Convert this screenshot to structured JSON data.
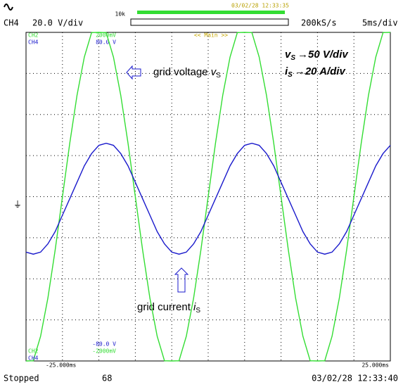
{
  "header": {
    "timestamp": "03/02/28 12:33:35",
    "record_length": "10k",
    "channel": "CH4",
    "scale": "20.0 V/div",
    "sample_rate": "200kS/s",
    "timebase": "5ms/div",
    "window": "<< Main >>"
  },
  "footer": {
    "status": "Stopped",
    "count": "68",
    "timestamp": "03/02/28 12:33:40"
  },
  "annotations": {
    "voltage": {
      "text": "grid voltage ",
      "var": "v",
      "sub": "S"
    },
    "current": {
      "text": "grid current ",
      "var": "i",
      "sub": "S"
    },
    "vscale": {
      "var": "v",
      "sub": "S",
      "text": "→50 V/div"
    },
    "iscale": {
      "var": "i",
      "sub": "S",
      "text": "→20 A/div"
    }
  },
  "chart_data": {
    "type": "line",
    "x": [
      -25,
      -24,
      -23,
      -22,
      -21,
      -20,
      -19,
      -18,
      -17,
      -16,
      -15,
      -14,
      -13,
      -12,
      -11,
      -10,
      -9,
      -8,
      -7,
      -6,
      -5,
      -4,
      -3,
      -2,
      -1,
      0,
      1,
      2,
      3,
      4,
      5,
      6,
      7,
      8,
      9,
      10,
      11,
      12,
      13,
      14,
      15,
      16,
      17,
      18,
      19,
      20,
      21,
      22,
      23,
      24,
      25
    ],
    "xlim": [
      -25,
      25
    ],
    "xticks": [
      {
        "value": -25,
        "label": "-25.000ms"
      },
      {
        "value": 25,
        "label": "25.000ms"
      }
    ],
    "ylim": [
      -2000,
      2000
    ],
    "yticks": [
      {
        "value": 2000,
        "label": "2000mV"
      },
      {
        "value": -2000,
        "label": "-2000mV"
      }
    ],
    "y2lim": [
      -80,
      80
    ],
    "y2ticks": [
      {
        "value": 80,
        "label": "80.0 V"
      },
      {
        "value": -80,
        "label": "-80.0 V"
      }
    ],
    "series": [
      {
        "name": "CH2",
        "color": "#33dd33",
        "values": [
          -2000,
          -1997,
          -1699,
          -1235,
          -649,
          0,
          649,
          1235,
          1699,
          1997,
          2000,
          1997,
          1699,
          1235,
          649,
          0,
          -649,
          -1235,
          -1699,
          -1997,
          -2000,
          -1997,
          -1699,
          -1235,
          -649,
          0,
          649,
          1235,
          1699,
          1997,
          2000,
          1997,
          1699,
          1235,
          649,
          0,
          -649,
          -1235,
          -1699,
          -1997,
          -2000,
          -1997,
          -1699,
          -1235,
          -649,
          0,
          649,
          1235,
          1699,
          1997,
          2000
        ]
      },
      {
        "name": "CH4",
        "color": "#1a1acc",
        "axis": "y2",
        "values": [
          -27,
          -28,
          -27,
          -23,
          -17,
          -9,
          -1,
          7,
          15,
          21,
          25,
          26,
          25,
          21,
          15,
          7,
          -1,
          -9,
          -17,
          -23,
          -27,
          -28,
          -27,
          -23,
          -17,
          -9,
          -1,
          7,
          15,
          21,
          25,
          26,
          25,
          21,
          15,
          7,
          -1,
          -9,
          -17,
          -23,
          -27,
          -28,
          -27,
          -23,
          -17,
          -9,
          -1,
          7,
          15,
          21,
          25
        ]
      }
    ]
  }
}
